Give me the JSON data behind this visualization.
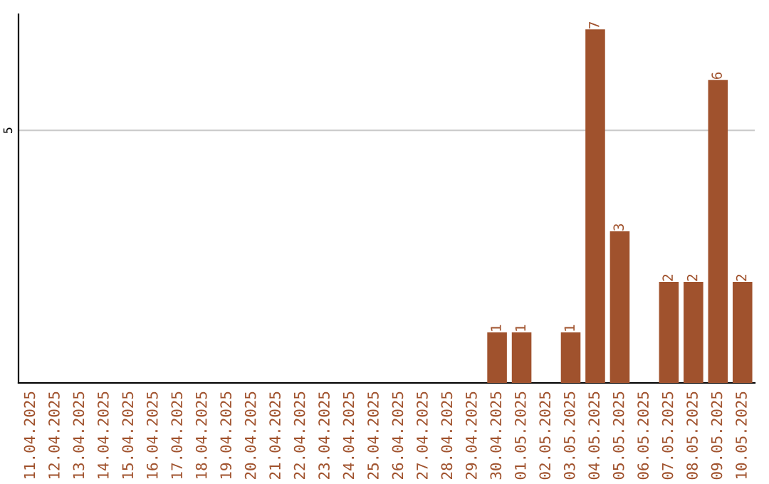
{
  "chart_data": {
    "type": "bar",
    "categories": [
      "11.04.2025",
      "12.04.2025",
      "13.04.2025",
      "14.04.2025",
      "15.04.2025",
      "16.04.2025",
      "17.04.2025",
      "18.04.2025",
      "19.04.2025",
      "20.04.2025",
      "21.04.2025",
      "22.04.2025",
      "23.04.2025",
      "24.04.2025",
      "25.04.2025",
      "26.04.2025",
      "27.04.2025",
      "28.04.2025",
      "29.04.2025",
      "30.04.2025",
      "01.05.2025",
      "02.05.2025",
      "03.05.2025",
      "04.05.2025",
      "05.05.2025",
      "06.05.2025",
      "07.05.2025",
      "08.05.2025",
      "09.05.2025",
      "10.05.2025"
    ],
    "values": [
      null,
      null,
      null,
      null,
      null,
      null,
      null,
      null,
      null,
      null,
      null,
      null,
      null,
      null,
      null,
      null,
      null,
      null,
      null,
      1,
      1,
      null,
      1,
      7,
      3,
      null,
      2,
      2,
      6,
      2
    ],
    "data_labels": true,
    "color": "#a0522d",
    "ylim": [
      0,
      7.3
    ],
    "yticks": [
      5
    ],
    "grid": "y",
    "legend": false
  }
}
